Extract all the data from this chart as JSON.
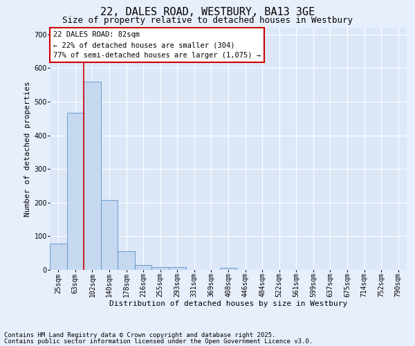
{
  "title": "22, DALES ROAD, WESTBURY, BA13 3GE",
  "subtitle": "Size of property relative to detached houses in Westbury",
  "xlabel": "Distribution of detached houses by size in Westbury",
  "ylabel": "Number of detached properties",
  "bar_categories": [
    "25sqm",
    "63sqm",
    "102sqm",
    "140sqm",
    "178sqm",
    "216sqm",
    "255sqm",
    "293sqm",
    "331sqm",
    "369sqm",
    "408sqm",
    "446sqm",
    "484sqm",
    "522sqm",
    "561sqm",
    "599sqm",
    "637sqm",
    "675sqm",
    "714sqm",
    "752sqm",
    "790sqm"
  ],
  "bar_values": [
    78,
    467,
    560,
    207,
    55,
    14,
    9,
    8,
    0,
    0,
    7,
    0,
    0,
    0,
    0,
    0,
    0,
    0,
    0,
    0,
    0
  ],
  "bar_color": "#c5d8f0",
  "bar_edge_color": "#5b8fc9",
  "vline_x": 1.5,
  "vline_color": "#cc0000",
  "ylim": [
    0,
    720
  ],
  "yticks": [
    0,
    100,
    200,
    300,
    400,
    500,
    600,
    700
  ],
  "annotation_box_text": "22 DALES ROAD: 82sqm\n← 22% of detached houses are smaller (304)\n77% of semi-detached houses are larger (1,075) →",
  "box_edge_color": "#cc0000",
  "footnote1": "Contains HM Land Registry data © Crown copyright and database right 2025.",
  "footnote2": "Contains public sector information licensed under the Open Government Licence v3.0.",
  "fig_bg_color": "#e8effc",
  "plot_bg_color": "#dce8f8",
  "title_fontsize": 11,
  "subtitle_fontsize": 9,
  "axis_label_fontsize": 8,
  "tick_fontsize": 7,
  "annotation_fontsize": 7.5,
  "footnote_fontsize": 6.5
}
